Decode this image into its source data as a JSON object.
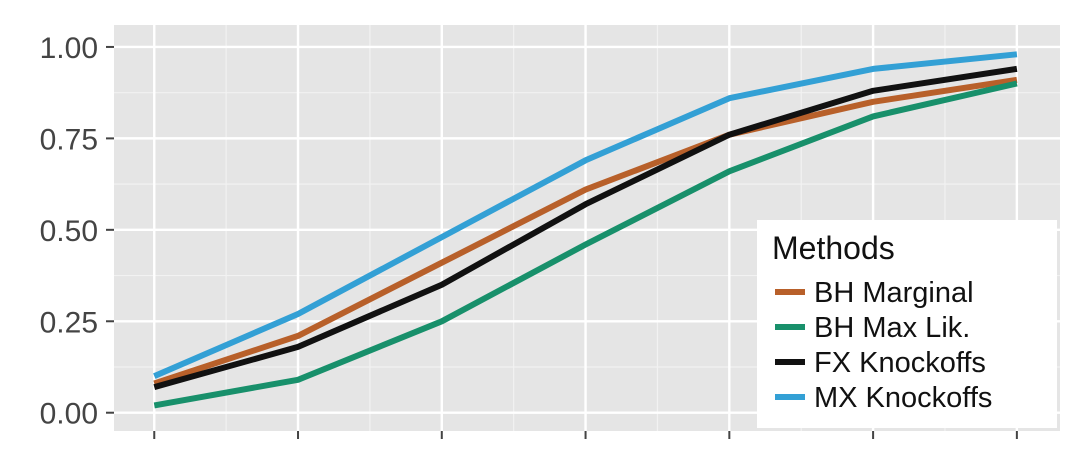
{
  "chart_data": {
    "type": "line",
    "x": [
      1,
      2,
      3,
      4,
      5,
      6,
      7
    ],
    "xlim": [
      0.72,
      7.3
    ],
    "ylim": [
      -0.05,
      1.06
    ],
    "yticks": [
      0.0,
      0.25,
      0.5,
      0.75,
      1.0
    ],
    "ytick_labels": [
      "0.00",
      "0.25",
      "0.50",
      "0.75",
      "1.00"
    ],
    "grid": true,
    "legend": {
      "title": "Methods",
      "position": "bottom-right"
    },
    "series": [
      {
        "name": "BH Marginal",
        "color": "#b8602a",
        "values": [
          0.08,
          0.21,
          0.41,
          0.61,
          0.76,
          0.85,
          0.91
        ]
      },
      {
        "name": "BH Max Lik.",
        "color": "#18906b",
        "values": [
          0.02,
          0.09,
          0.25,
          0.46,
          0.66,
          0.81,
          0.9
        ]
      },
      {
        "name": "FX Knockoffs",
        "color": "#111111",
        "values": [
          0.07,
          0.18,
          0.35,
          0.57,
          0.76,
          0.88,
          0.94
        ]
      },
      {
        "name": "MX Knockoffs",
        "color": "#33a0d5",
        "values": [
          0.1,
          0.27,
          0.48,
          0.69,
          0.86,
          0.94,
          0.98
        ]
      }
    ]
  }
}
